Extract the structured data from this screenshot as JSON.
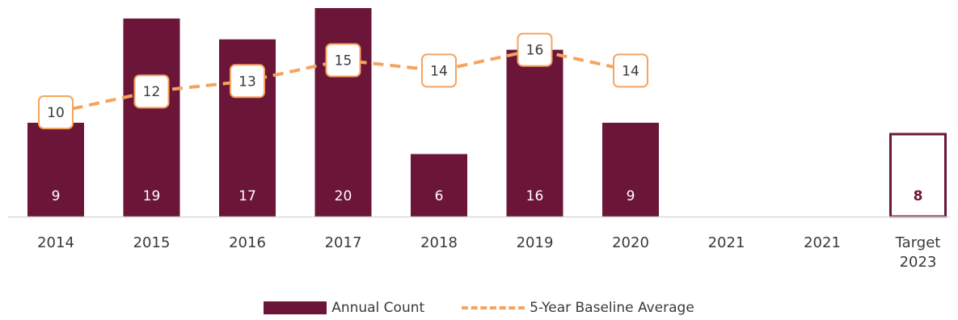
{
  "chart_data": {
    "type": "bar",
    "categories": [
      "2014",
      "2015",
      "2016",
      "2017",
      "2018",
      "2019",
      "2020",
      "2021",
      "2021",
      "Target\n2023"
    ],
    "series": [
      {
        "name": "Annual Count",
        "type": "bar",
        "values": [
          9,
          19,
          17,
          20,
          6,
          16,
          9,
          null,
          null,
          8
        ],
        "color": "#6b1538"
      },
      {
        "name": "5-Year Baseline Average",
        "type": "line",
        "style": "dashed",
        "values": [
          10,
          12,
          13,
          15,
          14,
          16,
          14,
          null,
          null,
          null
        ],
        "color": "#f4a460"
      }
    ],
    "target": {
      "category_index": 9,
      "value": 8,
      "style": "outline"
    },
    "ylim": [
      0,
      20
    ],
    "grid": false,
    "legend": {
      "position": "bottom",
      "entries": [
        "Annual Count",
        "5-Year Baseline Average"
      ]
    },
    "title": "",
    "xlabel": "",
    "ylabel": ""
  }
}
